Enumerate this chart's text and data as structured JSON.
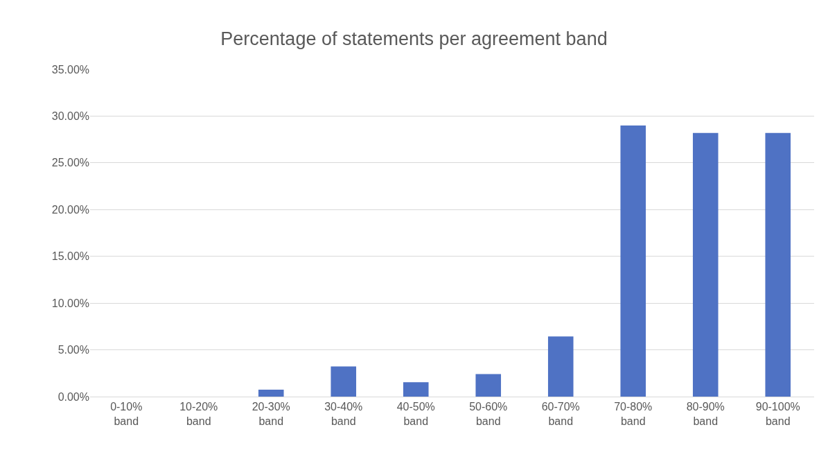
{
  "chart_data": {
    "type": "bar",
    "title": "Percentage of statements per agreement band",
    "categories": [
      "0-10% band",
      "10-20% band",
      "20-30% band",
      "30-40% band",
      "40-50% band",
      "50-60% band",
      "60-70% band",
      "70-80% band",
      "80-90% band",
      "90-100% band"
    ],
    "values": [
      0,
      0,
      0.75,
      3.23,
      1.53,
      2.41,
      6.43,
      29.0,
      28.2,
      28.2
    ],
    "color": "#4f72c4",
    "ylim": [
      0,
      35
    ],
    "yticks": [
      {
        "value": 0,
        "label": "0.00%"
      },
      {
        "value": 5,
        "label": "5.00%"
      },
      {
        "value": 10,
        "label": "10.00%"
      },
      {
        "value": 15,
        "label": "15.00%"
      },
      {
        "value": 20,
        "label": "20.00%"
      },
      {
        "value": 25,
        "label": "25.00%"
      },
      {
        "value": 30,
        "label": "30.00%"
      },
      {
        "value": 35,
        "label": "35.00%"
      }
    ],
    "grid": "y",
    "legend": false
  }
}
